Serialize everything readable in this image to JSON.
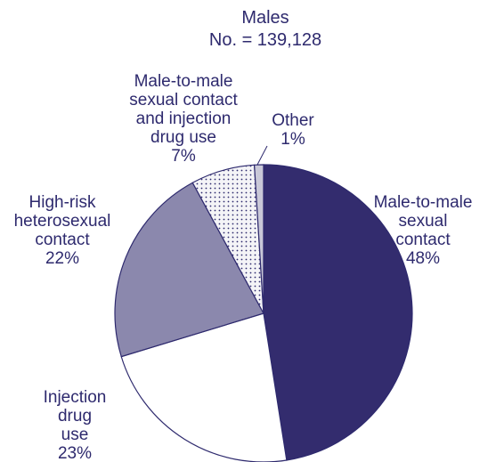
{
  "chart_data": {
    "type": "pie",
    "title": "Males",
    "subtitle": "No. = 139,128",
    "slices": [
      {
        "lines": [
          "Male-to-male",
          "sexual",
          "contact",
          "48%"
        ],
        "value": 48,
        "color": "#332c6e",
        "pattern": "solid"
      },
      {
        "lines": [
          "Injection",
          "drug",
          "use",
          "23%"
        ],
        "value": 23,
        "color": "#ffffff",
        "pattern": "solid"
      },
      {
        "lines": [
          "High-risk",
          "heterosexual",
          "contact",
          "22%"
        ],
        "value": 22,
        "color": "#8b88ad",
        "pattern": "solid"
      },
      {
        "lines": [
          "Male-to-male",
          "sexual contact",
          "and injection",
          "drug use",
          "7%"
        ],
        "value": 7,
        "color": "#f2f2f5",
        "pattern": "dots"
      },
      {
        "lines": [
          "Other",
          "1%"
        ],
        "value": 1,
        "color": "#c9c8d8",
        "pattern": "solid"
      }
    ]
  }
}
